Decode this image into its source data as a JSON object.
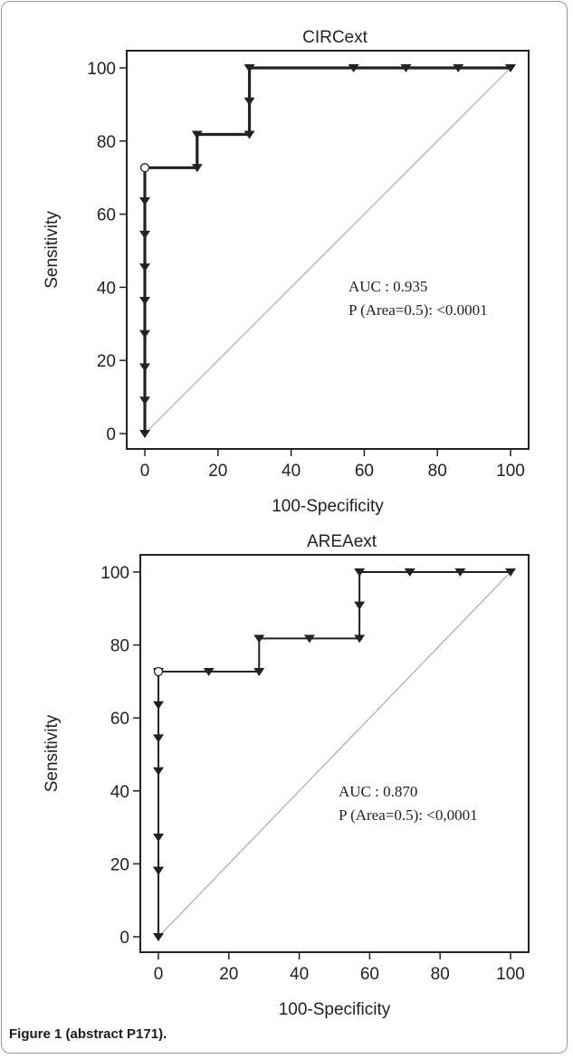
{
  "figure_caption": "Figure 1 (abstract P171).",
  "chart_data": [
    {
      "type": "line",
      "title": "CIRCext",
      "xlabel": "100-Specificity",
      "ylabel": "Sensitivity",
      "xlim": [
        0,
        100
      ],
      "ylim": [
        0,
        100
      ],
      "xticks": [
        0,
        20,
        40,
        60,
        80,
        100
      ],
      "yticks": [
        0,
        20,
        40,
        60,
        80,
        100
      ],
      "grid": false,
      "series": [
        {
          "x": [
            0,
            0,
            0,
            0,
            0,
            0,
            0,
            0,
            0,
            14.3,
            14.3,
            28.6,
            28.6,
            28.6,
            57.1,
            71.4,
            85.7,
            100
          ],
          "y": [
            0,
            9.1,
            18.2,
            27.3,
            36.4,
            45.5,
            54.5,
            63.6,
            72.7,
            72.7,
            81.8,
            81.8,
            90.9,
            100,
            100,
            100,
            100,
            100
          ],
          "open_marker_index": 8,
          "color": "#222222"
        },
        {
          "x": [
            0,
            100
          ],
          "y": [
            0,
            100
          ],
          "color": "#aaaaaa"
        }
      ],
      "annotations": [
        "AUC : 0.935",
        "P (Area=0.5): <0.0001"
      ]
    },
    {
      "type": "line",
      "title": "AREAext",
      "xlabel": "100-Specificity",
      "ylabel": "Sensitivity",
      "xlim": [
        0,
        100
      ],
      "ylim": [
        0,
        100
      ],
      "xticks": [
        0,
        20,
        40,
        60,
        80,
        100
      ],
      "yticks": [
        0,
        20,
        40,
        60,
        80,
        100
      ],
      "grid": false,
      "series": [
        {
          "x": [
            0,
            0,
            0,
            0,
            0,
            0,
            0,
            0,
            0,
            14.3,
            28.6,
            28.6,
            42.9,
            57.1,
            57.1,
            57.1,
            71.4,
            85.7,
            100
          ],
          "y": [
            0,
            18.2,
            18.2,
            27.3,
            45.5,
            54.5,
            63.6,
            72.7,
            72.7,
            72.7,
            72.7,
            81.8,
            81.8,
            81.8,
            90.9,
            100,
            100,
            100,
            100
          ],
          "open_marker_index": 8,
          "color": "#222222"
        },
        {
          "x": [
            0,
            100
          ],
          "y": [
            0,
            100
          ],
          "color": "#aaaaaa"
        }
      ],
      "annotations": [
        "AUC : 0.870",
        "P (Area=0.5): <0,0001"
      ]
    }
  ]
}
